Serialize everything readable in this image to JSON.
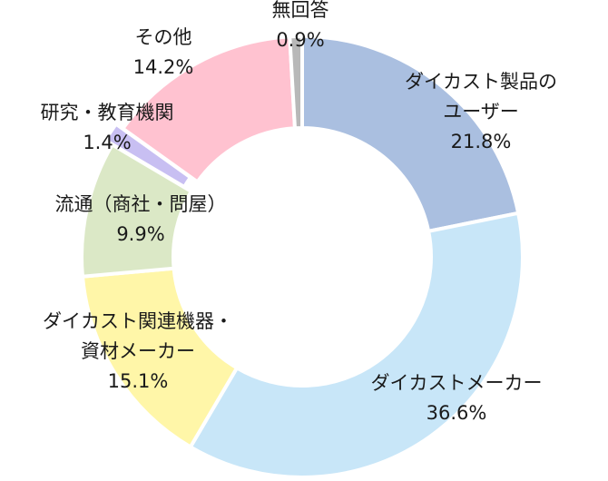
{
  "chart_data": {
    "type": "pie",
    "variant": "donut",
    "title": "",
    "legend": "none",
    "slice_border_color": "#ffffff",
    "slices": [
      {
        "name": "ダイカスト製品のユーザー",
        "label_lines": [
          "ダイカスト製品の",
          "ユーザー"
        ],
        "value": 21.8,
        "value_label": "21.8%",
        "color": "#aabfe0",
        "exploded": false
      },
      {
        "name": "ダイカストメーカー",
        "label_lines": [
          "ダイカストメーカー"
        ],
        "value": 36.6,
        "value_label": "36.6%",
        "color": "#c8e6f8",
        "exploded": false
      },
      {
        "name": "ダイカスト関連機器・資材メーカー",
        "label_lines": [
          "ダイカスト関連機器・",
          "資材メーカー"
        ],
        "value": 15.1,
        "value_label": "15.1%",
        "color": "#fff6a8",
        "exploded": false
      },
      {
        "name": "流通（商社・問屋）",
        "label_lines": [
          "流通（商社・問屋）"
        ],
        "value": 9.9,
        "value_label": "9.9%",
        "color": "#dbe8c6",
        "exploded": false
      },
      {
        "name": "研究・教育機関",
        "label_lines": [
          "研究・教育機関"
        ],
        "value": 1.4,
        "value_label": "1.4%",
        "color": "#c8bff2",
        "exploded": true
      },
      {
        "name": "その他",
        "label_lines": [
          "その他"
        ],
        "value": 14.2,
        "value_label": "14.2%",
        "color": "#ffc2d0",
        "exploded": false
      },
      {
        "name": "無回答",
        "label_lines": [
          "無回答"
        ],
        "value": 0.9,
        "value_label": "0.9%",
        "color": "#b8b8b8",
        "exploded": false
      }
    ]
  }
}
